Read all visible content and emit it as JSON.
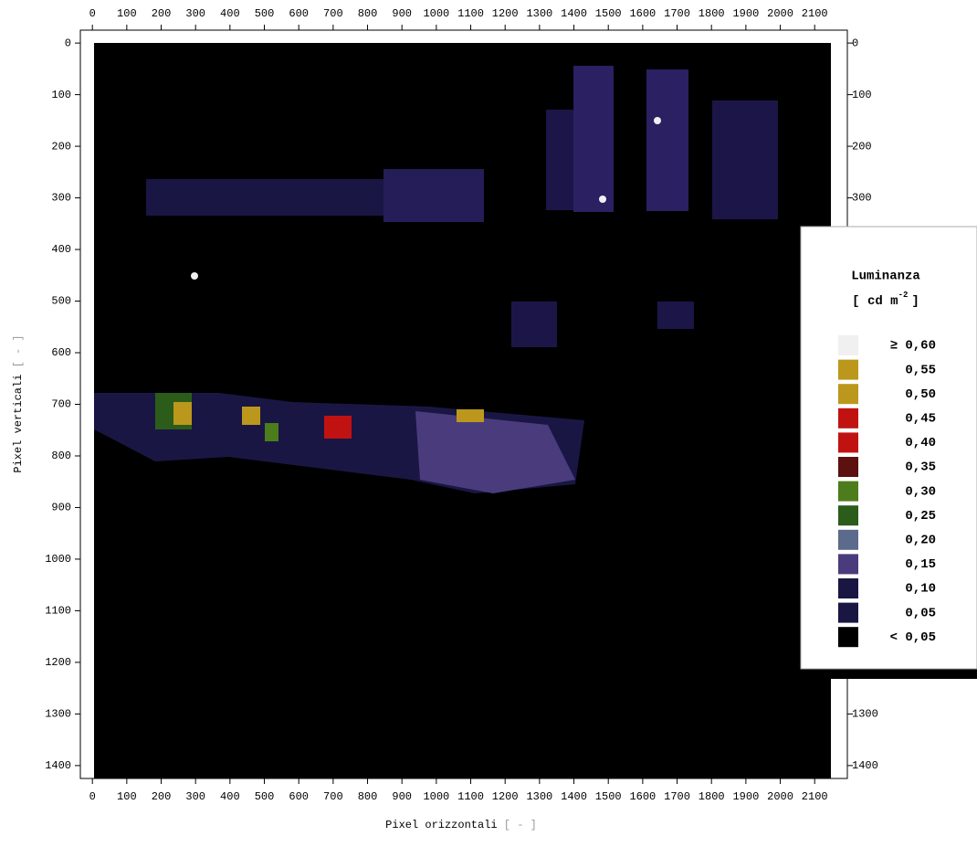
{
  "chart_data": {
    "type": "image",
    "x_label": "Pixel orizzontali",
    "x_label_unit": "[ - ]",
    "y_label": "Pixel verticali",
    "y_label_unit": "[ - ]",
    "xlim": [
      -35,
      2195
    ],
    "ylim": [
      -25,
      1425
    ],
    "y_inverted": true,
    "xticks": [
      0,
      100,
      200,
      300,
      400,
      500,
      600,
      700,
      800,
      900,
      1000,
      1100,
      1200,
      1300,
      1400,
      1500,
      1600,
      1700,
      1800,
      1900,
      2000,
      2100
    ],
    "yticks": [
      0,
      100,
      200,
      300,
      400,
      500,
      600,
      700,
      800,
      900,
      1000,
      1100,
      1200,
      1300,
      1400
    ],
    "legend": {
      "title": "Luminanza",
      "unit_open": "[ cd m",
      "unit_exp": "-2",
      "unit_close": "]",
      "items": [
        {
          "label": "≥ 0,60",
          "color": "#f0f0f0"
        },
        {
          "label": "0,55",
          "color": "#bb981c"
        },
        {
          "label": "0,50",
          "color": "#bb981c"
        },
        {
          "label": "0,45",
          "color": "#c11212"
        },
        {
          "label": "0,40",
          "color": "#c11212"
        },
        {
          "label": "0,35",
          "color": "#5c1010"
        },
        {
          "label": "0,30",
          "color": "#4c7c1c"
        },
        {
          "label": "0,25",
          "color": "#2c5c1a"
        },
        {
          "label": "0,20",
          "color": "#5c6a8c"
        },
        {
          "label": "0,15",
          "color": "#4a3c7c"
        },
        {
          "label": "0,10",
          "color": "#1a1642"
        },
        {
          "label": "0,05",
          "color": "#1a1642"
        },
        {
          "label": "< 0,05",
          "color": "#000000"
        }
      ]
    }
  }
}
